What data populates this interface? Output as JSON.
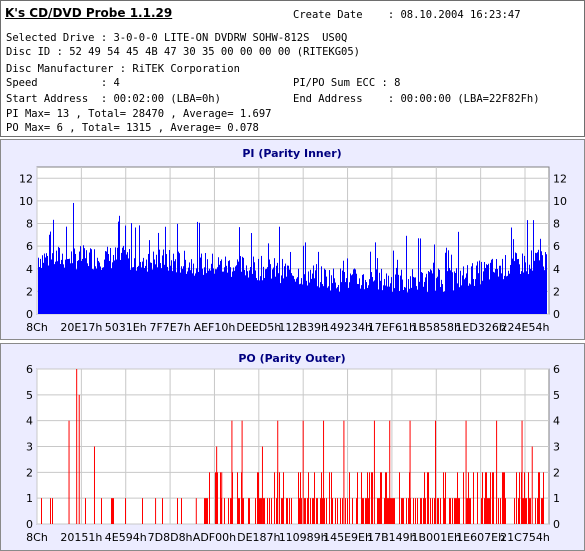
{
  "header": {
    "app_title": "K's CD/DVD Probe 1.1.29",
    "create_date": "Create Date    : 08.10.2004 16:23:47",
    "selected_drive": "Selected Drive : 3-0-0-0 LITE-ON DVDRW SOHW-812S  US0Q",
    "disc_id": "Disc ID : 52 49 54 45 4B 47 30 35 00 00 00 00 (RITEKG05)",
    "disc_manufacturer": "Disc Manufacturer : RiTEK Corporation",
    "speed": "Speed          : 4",
    "sum_ecc": "PI/PO Sum ECC : 8",
    "start_address": "Start Address  : 00:02:00 (LBA=0h)",
    "end_address": "End Address    : 00:00:00 (LBA=22F82Fh)",
    "pi_stats": "PI Max= 13 , Total= 28470 , Average= 1.697",
    "po_stats": "PO Max= 6 , Total= 1315 , Average= 0.078"
  },
  "colors": {
    "pi_bar": "#0000ff",
    "po_bar": "#ff0000",
    "panel_bg": "#ececff",
    "title": "#000080"
  },
  "chart_data": [
    {
      "type": "bar",
      "title": "PI (Parity Inner)",
      "ylim": [
        0,
        13
      ],
      "yticks": [
        "0",
        "2",
        "4",
        "6",
        "8",
        "10",
        "12"
      ],
      "xticks": [
        "8Ch",
        "20E17h",
        "5031Eh",
        "7F7E7h",
        "AEF10h",
        "DEED5h",
        "112B39h",
        "149234h",
        "17EF61h",
        "1B5858h",
        "1ED326h",
        "224E54h"
      ],
      "grid": true,
      "profile": [
        {
          "x": 0.0,
          "base": 5,
          "max": 11
        },
        {
          "x": 0.15,
          "base": 5,
          "max": 9
        },
        {
          "x": 0.45,
          "base": 4,
          "max": 8
        },
        {
          "x": 0.6,
          "base": 3,
          "max": 7
        },
        {
          "x": 0.8,
          "base": 3,
          "max": 7
        },
        {
          "x": 1.0,
          "base": 5,
          "max": 10
        }
      ]
    },
    {
      "type": "bar",
      "title": "PO (Parity Outer)",
      "ylim": [
        0,
        6
      ],
      "yticks": [
        "0",
        "1",
        "2",
        "3",
        "4",
        "5",
        "6"
      ],
      "xticks": [
        "8Ch",
        "20151h",
        "4E594h",
        "7D8D8h",
        "ADF00h",
        "DE187h",
        "110989h",
        "145E9Eh",
        "17B149h",
        "1B001Eh",
        "1E607Eh",
        "21C754h"
      ],
      "grid": true,
      "spikes": [
        {
          "x": 0.06,
          "v": 4
        },
        {
          "x": 0.075,
          "v": 6
        },
        {
          "x": 0.08,
          "v": 5
        },
        {
          "x": 0.11,
          "v": 3
        },
        {
          "x": 0.23,
          "v": 1
        },
        {
          "x": 0.31,
          "v": 1
        },
        {
          "x": 0.35,
          "v": 3
        },
        {
          "x": 0.36,
          "v": 2
        },
        {
          "x": 0.38,
          "v": 4
        },
        {
          "x": 0.4,
          "v": 4
        },
        {
          "x": 0.44,
          "v": 3
        },
        {
          "x": 0.47,
          "v": 4
        },
        {
          "x": 0.52,
          "v": 4
        },
        {
          "x": 0.56,
          "v": 4
        },
        {
          "x": 0.6,
          "v": 4
        },
        {
          "x": 0.66,
          "v": 4
        },
        {
          "x": 0.69,
          "v": 4
        },
        {
          "x": 0.73,
          "v": 4
        },
        {
          "x": 0.78,
          "v": 4
        },
        {
          "x": 0.84,
          "v": 4
        },
        {
          "x": 0.9,
          "v": 4
        },
        {
          "x": 0.95,
          "v": 4
        },
        {
          "x": 0.97,
          "v": 3
        }
      ]
    }
  ]
}
